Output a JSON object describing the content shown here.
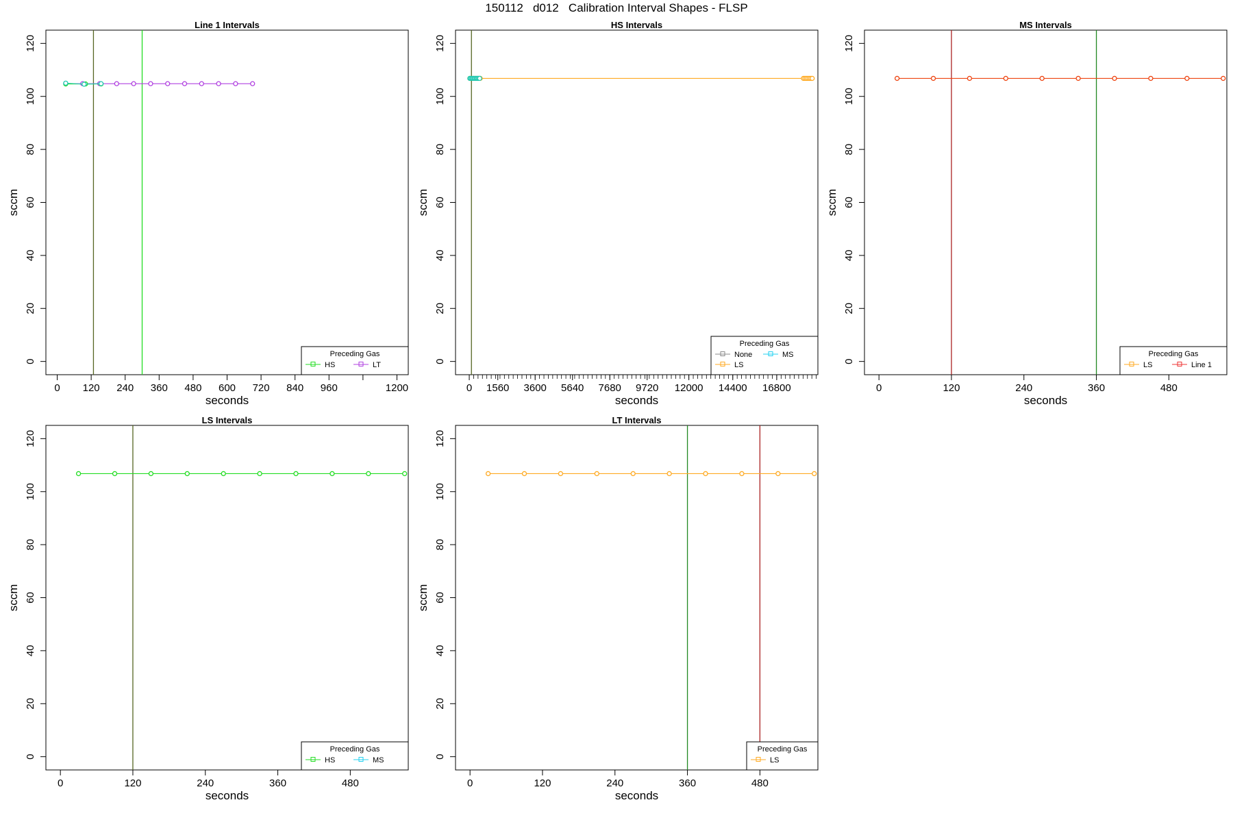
{
  "figure": {
    "title": "150112   d012   Calibration Interval Shapes - FLSP"
  },
  "colors": {
    "green": "#22dd22",
    "purple": "#b040e0",
    "teal": "#20c8b0",
    "orange": "#ffaa22",
    "red_orange": "#ee4411",
    "gray": "#888888",
    "cyan": "#22d0f0",
    "red": "#ee3333",
    "dark_green": "#228822",
    "dark_red": "#aa2222",
    "olive": "#556622"
  },
  "chart_data": [
    {
      "type": "line",
      "title": "Line 1 Intervals",
      "xlabel": "seconds",
      "ylabel": "sccm",
      "xlim": [
        -40,
        1240
      ],
      "ylim": [
        -5,
        125
      ],
      "xticks": [
        0,
        120,
        240,
        360,
        480,
        600,
        720,
        840,
        960,
        1200
      ],
      "xtick_labels": [
        "0",
        "120",
        "240",
        "360",
        "480",
        "600",
        "720",
        "840",
        "960",
        "1200"
      ],
      "minor_xticks": [
        1080
      ],
      "yticks": [
        0,
        20,
        40,
        60,
        80,
        100,
        120
      ],
      "legend": {
        "title": "Preceding Gas",
        "placement": "bottom-right",
        "columns": 2,
        "entries": [
          {
            "label": "HS",
            "color": "#22dd22"
          },
          {
            "label": "LT",
            "color": "#b040e0"
          }
        ]
      },
      "vlines": [
        {
          "x": 128,
          "color": "#556622"
        },
        {
          "x": 300,
          "color": "#22dd22"
        }
      ],
      "series": [
        {
          "color": "#b040e0",
          "x": [
            30,
            90,
            150,
            210,
            270,
            330,
            390,
            450,
            510,
            570,
            630,
            690
          ],
          "y": [
            104.8,
            104.8,
            104.8,
            104.8,
            104.8,
            104.8,
            104.8,
            104.8,
            104.8,
            104.8,
            104.8,
            104.8
          ]
        },
        {
          "color": "#22dd22",
          "x": [
            30,
            100,
            155
          ],
          "y": [
            104.7,
            104.7,
            104.7
          ]
        },
        {
          "color": "#20c8b0",
          "x": [
            30,
            95,
            155
          ],
          "y": [
            105.0,
            104.6,
            104.8
          ]
        }
      ]
    },
    {
      "type": "line",
      "title": "HS Intervals",
      "xlabel": "seconds",
      "ylabel": "sccm",
      "xlim": [
        -750,
        19050
      ],
      "ylim": [
        -5,
        125
      ],
      "xticks": [
        0,
        1560,
        3600,
        5640,
        7680,
        9720,
        12000,
        14400,
        16800
      ],
      "xtick_labels": [
        "0",
        "1560",
        "3600",
        "5640",
        "7680",
        "9720",
        "12000",
        "14400",
        "16800"
      ],
      "minor_tick_step": 240,
      "yticks": [
        0,
        20,
        40,
        60,
        80,
        100,
        120
      ],
      "legend": {
        "title": "Preceding Gas",
        "placement": "bottom-right",
        "columns": 2,
        "entries": [
          {
            "label": "None",
            "color": "#888888"
          },
          {
            "label": "MS",
            "color": "#22d0f0"
          },
          {
            "label": "LS",
            "color": "#ffaa22"
          }
        ]
      },
      "vlines": [
        {
          "x": 120,
          "color": "#556622"
        }
      ],
      "series": [
        {
          "color": "#ffaa22",
          "x": [
            30,
            120,
            240,
            360,
            480,
            600,
            18260,
            18340,
            18420,
            18500,
            18580,
            18660,
            18740
          ],
          "y": [
            106.8,
            106.8,
            106.8,
            106.8,
            106.8,
            106.8,
            106.8,
            106.8,
            106.8,
            106.8,
            106.8,
            106.8,
            106.8
          ]
        },
        {
          "color": "#20c8b0",
          "x": [
            30,
            90,
            150,
            210,
            270,
            330,
            390,
            450,
            510,
            570
          ],
          "y": [
            106.8,
            106.8,
            106.8,
            106.8,
            106.8,
            106.8,
            106.8,
            106.8,
            106.8,
            106.8
          ]
        }
      ]
    },
    {
      "type": "line",
      "title": "MS Intervals",
      "xlabel": "seconds",
      "ylabel": "sccm",
      "xlim": [
        -24,
        576
      ],
      "ylim": [
        -5,
        125
      ],
      "xticks": [
        0,
        120,
        240,
        360,
        480
      ],
      "xtick_labels": [
        "0",
        "120",
        "240",
        "360",
        "480"
      ],
      "yticks": [
        0,
        20,
        40,
        60,
        80,
        100,
        120
      ],
      "legend": {
        "title": "Preceding Gas",
        "placement": "bottom-right",
        "columns": 2,
        "entries": [
          {
            "label": "LS",
            "color": "#ffaa22"
          },
          {
            "label": "Line 1",
            "color": "#ee3333"
          }
        ]
      },
      "vlines": [
        {
          "x": 120,
          "color": "#aa2222"
        },
        {
          "x": 360,
          "color": "#228822"
        }
      ],
      "series": [
        {
          "color": "#ee4411",
          "x": [
            30,
            90,
            150,
            210,
            270,
            330,
            390,
            450,
            510,
            570
          ],
          "y": [
            106.8,
            106.8,
            106.8,
            106.8,
            106.8,
            106.8,
            106.8,
            106.8,
            106.8,
            106.8
          ]
        }
      ]
    },
    {
      "type": "line",
      "title": "LS Intervals",
      "xlabel": "seconds",
      "ylabel": "sccm",
      "xlim": [
        -24,
        576
      ],
      "ylim": [
        -5,
        125
      ],
      "xticks": [
        0,
        120,
        240,
        360,
        480
      ],
      "xtick_labels": [
        "0",
        "120",
        "240",
        "360",
        "480"
      ],
      "yticks": [
        0,
        20,
        40,
        60,
        80,
        100,
        120
      ],
      "legend": {
        "title": "Preceding Gas",
        "placement": "bottom-right",
        "columns": 2,
        "entries": [
          {
            "label": "HS",
            "color": "#22dd22"
          },
          {
            "label": "MS",
            "color": "#22d0f0"
          }
        ]
      },
      "vlines": [
        {
          "x": 120,
          "color": "#556622"
        }
      ],
      "series": [
        {
          "color": "#22dd22",
          "x": [
            30,
            90,
            150,
            210,
            270,
            330,
            390,
            450,
            510,
            570
          ],
          "y": [
            106.8,
            106.8,
            106.8,
            106.8,
            106.8,
            106.8,
            106.8,
            106.8,
            106.8,
            106.8
          ]
        }
      ]
    },
    {
      "type": "line",
      "title": "LT Intervals",
      "xlabel": "seconds",
      "ylabel": "sccm",
      "xlim": [
        -24,
        576
      ],
      "ylim": [
        -5,
        125
      ],
      "xticks": [
        0,
        120,
        240,
        360,
        480
      ],
      "xtick_labels": [
        "0",
        "120",
        "240",
        "360",
        "480"
      ],
      "yticks": [
        0,
        20,
        40,
        60,
        80,
        100,
        120
      ],
      "legend": {
        "title": "Preceding Gas",
        "placement": "bottom-right",
        "columns": 1,
        "entries": [
          {
            "label": "LS",
            "color": "#ffaa22"
          }
        ]
      },
      "vlines": [
        {
          "x": 360,
          "color": "#228822"
        },
        {
          "x": 480,
          "color": "#aa2222"
        }
      ],
      "series": [
        {
          "color": "#ffaa22",
          "x": [
            30,
            90,
            150,
            210,
            270,
            330,
            390,
            450,
            510,
            570
          ],
          "y": [
            106.8,
            106.8,
            106.8,
            106.8,
            106.8,
            106.8,
            106.8,
            106.8,
            106.8,
            106.8
          ]
        }
      ]
    }
  ]
}
